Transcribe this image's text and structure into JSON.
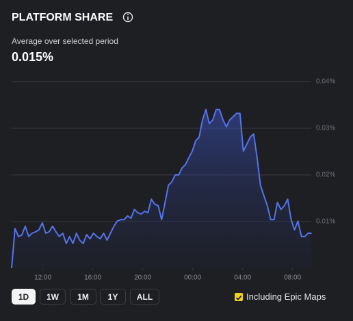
{
  "chart_data": {
    "type": "line",
    "title": "PLATFORM SHARE",
    "subtitle": "Average over selected period",
    "headline": "0.015%",
    "x": [
      9.5,
      9.77,
      10.05,
      10.32,
      10.59,
      10.87,
      11.14,
      11.41,
      11.68,
      11.96,
      12.23,
      12.5,
      12.78,
      13.05,
      13.32,
      13.6,
      13.87,
      14.14,
      14.41,
      14.69,
      14.96,
      15.23,
      15.51,
      15.78,
      16.05,
      16.33,
      16.6,
      16.87,
      17.14,
      17.42,
      17.69,
      17.96,
      18.24,
      18.51,
      18.78,
      19.06,
      19.33,
      19.6,
      19.87,
      20.15,
      20.42,
      20.69,
      20.97,
      21.24,
      21.51,
      21.79,
      22.06,
      22.33,
      22.6,
      22.88,
      23.15,
      23.42,
      23.7,
      23.97,
      24.24,
      24.52,
      24.79,
      25.06,
      25.33,
      25.61,
      25.88,
      26.15,
      26.43,
      26.7,
      26.97,
      27.25,
      27.52,
      27.79,
      28.06,
      28.34,
      28.61,
      28.88,
      29.16,
      29.43,
      29.7,
      29.98,
      30.25,
      30.52,
      30.79,
      31.07,
      31.34,
      31.61,
      31.89,
      32.16,
      32.43,
      32.71,
      32.98,
      33.25,
      33.52
    ],
    "series": [
      {
        "color": "#5673ea",
        "values": [
          0,
          0.0085,
          0.0068,
          0.0071,
          0.009,
          0.0068,
          0.0075,
          0.0078,
          0.0082,
          0.0097,
          0.0075,
          0.0078,
          0.009,
          0.0078,
          0.0068,
          0.0075,
          0.0053,
          0.0068,
          0.0053,
          0.0075,
          0.006,
          0.0053,
          0.0072,
          0.0063,
          0.0075,
          0.0068,
          0.0063,
          0.0075,
          0.006,
          0.0075,
          0.009,
          0.0101,
          0.0104,
          0.0104,
          0.0112,
          0.0107,
          0.0126,
          0.0119,
          0.0116,
          0.0122,
          0.0119,
          0.0148,
          0.0137,
          0.0134,
          0.0104,
          0.0141,
          0.0178,
          0.0185,
          0.02,
          0.02,
          0.0215,
          0.0222,
          0.0237,
          0.0251,
          0.0273,
          0.0281,
          0.0318,
          0.034,
          0.031,
          0.0318,
          0.034,
          0.034,
          0.0318,
          0.0303,
          0.0318,
          0.0325,
          0.0332,
          0.0332,
          0.0251,
          0.0266,
          0.0281,
          0.0288,
          0.0237,
          0.0178,
          0.0156,
          0.0134,
          0.0104,
          0.0104,
          0.0141,
          0.0126,
          0.0134,
          0.0148,
          0.0104,
          0.0082,
          0.0101,
          0.0068,
          0.0068,
          0.0075,
          0.0075
        ]
      }
    ],
    "xlim": [
      9.5,
      33.5
    ],
    "xticks": [
      {
        "value": 12,
        "label": "12:00"
      },
      {
        "value": 16,
        "label": "16:00"
      },
      {
        "value": 20,
        "label": "20:00"
      },
      {
        "value": 24,
        "label": "00:00"
      },
      {
        "value": 28,
        "label": "04:00"
      },
      {
        "value": 32,
        "label": "08:00"
      }
    ],
    "ylim": [
      0,
      0.04
    ],
    "yticks": [
      {
        "value": 0.01,
        "label": "0.01%"
      },
      {
        "value": 0.02,
        "label": "0.02%"
      },
      {
        "value": 0.03,
        "label": "0.03%"
      },
      {
        "value": 0.04,
        "label": "0.04%"
      }
    ],
    "grid": true
  },
  "controls": {
    "ranges": [
      "1D",
      "1W",
      "1M",
      "1Y",
      "ALL"
    ],
    "selected": "1D",
    "checkbox": {
      "label": "Including Epic Maps",
      "checked": true
    }
  }
}
